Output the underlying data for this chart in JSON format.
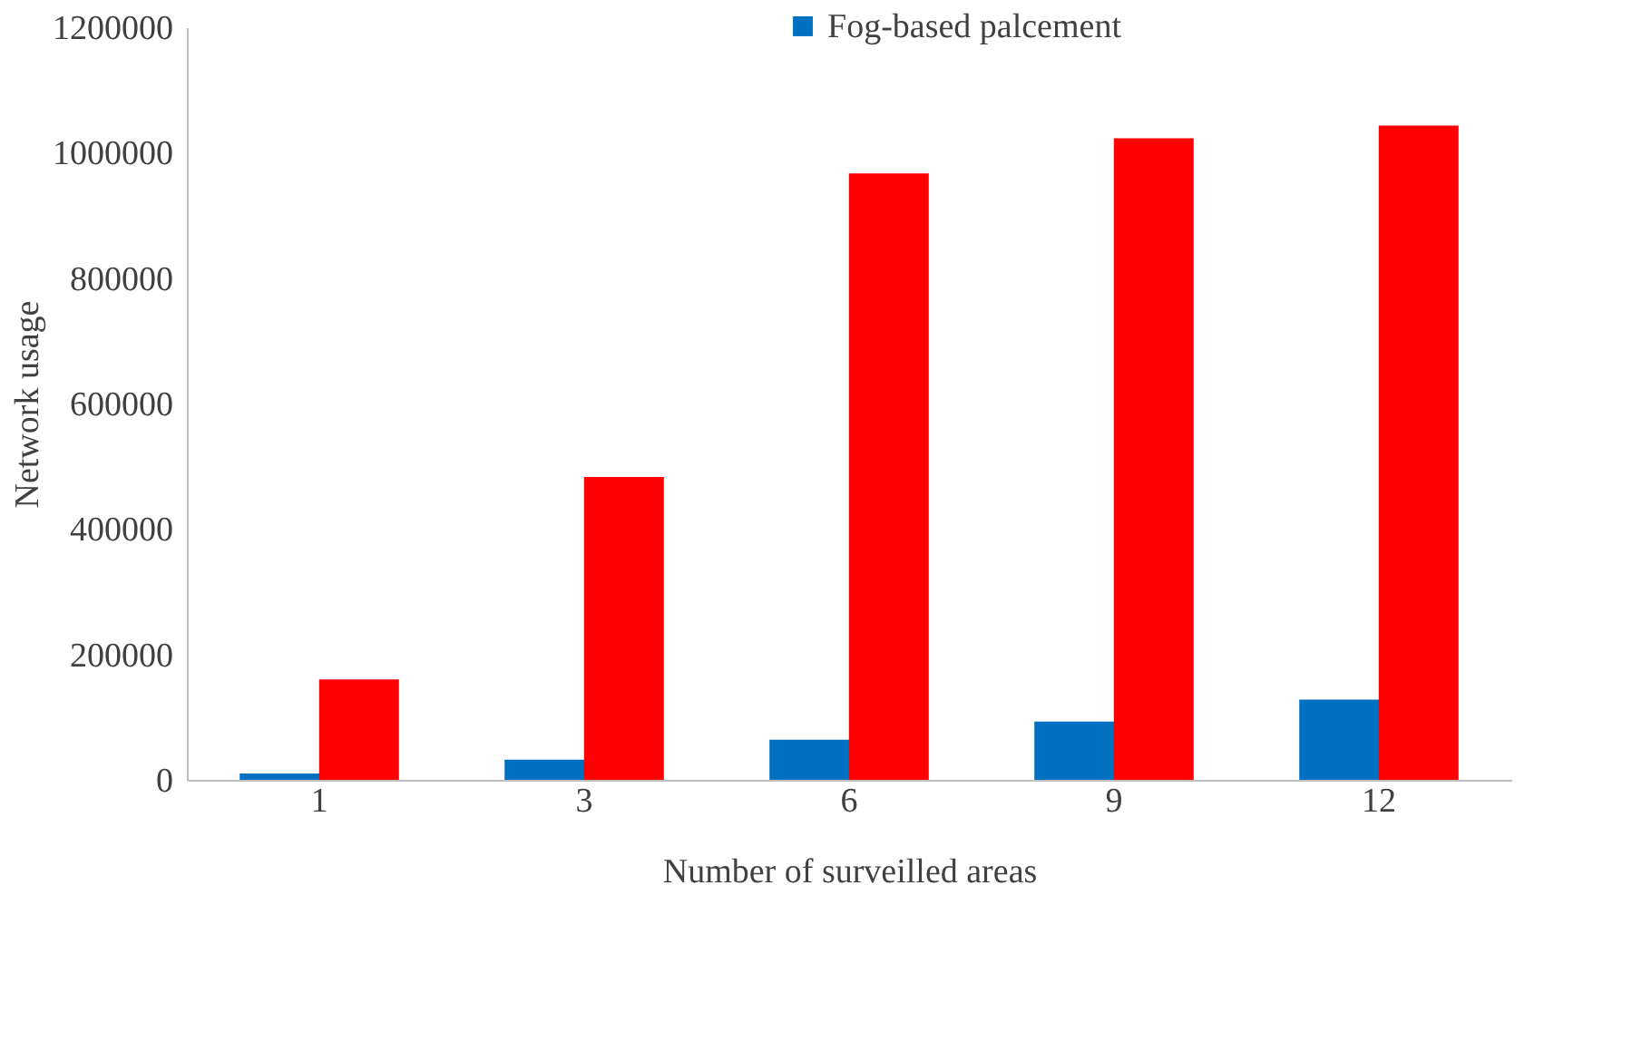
{
  "chart_data": {
    "type": "bar",
    "xlabel": "Number of surveilled areas",
    "ylabel": "Network usage",
    "categories": [
      "1",
      "3",
      "6",
      "9",
      "12"
    ],
    "series": [
      {
        "name": "Fog-based palcement",
        "color": "#0070c0",
        "values": [
          10000,
          32000,
          64000,
          93000,
          128000
        ]
      },
      {
        "color": "#ff0000",
        "values": [
          160000,
          483000,
          967000,
          1023000,
          1043000
        ]
      }
    ],
    "ylim": [
      0,
      1200000
    ],
    "yticks": [
      0,
      200000,
      400000,
      600000,
      800000,
      1000000,
      1200000
    ],
    "grid": false,
    "legend": "top"
  }
}
